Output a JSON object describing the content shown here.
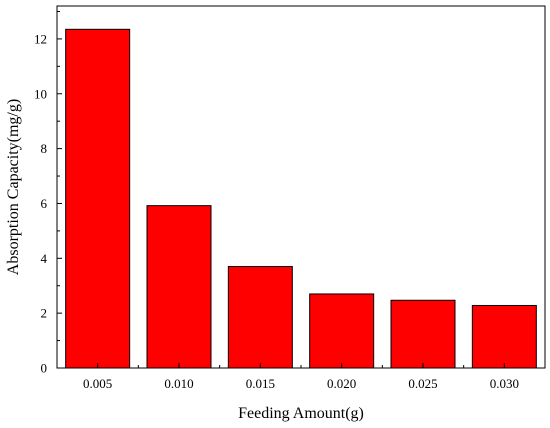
{
  "chart_data": {
    "type": "bar",
    "categories": [
      "0.005",
      "0.010",
      "0.015",
      "0.020",
      "0.025",
      "0.030"
    ],
    "values": [
      12.35,
      5.92,
      3.7,
      2.7,
      2.47,
      2.28
    ],
    "yticks": [
      "0",
      "2",
      "4",
      "6",
      "8",
      "10",
      "12"
    ],
    "ylim": [
      0,
      13.2
    ],
    "xlabel": "Feeding Amount(g)",
    "ylabel": "Absorption Capacity(mg/g)",
    "bar_color": "#ff0000",
    "grid": false,
    "legend": "none"
  }
}
